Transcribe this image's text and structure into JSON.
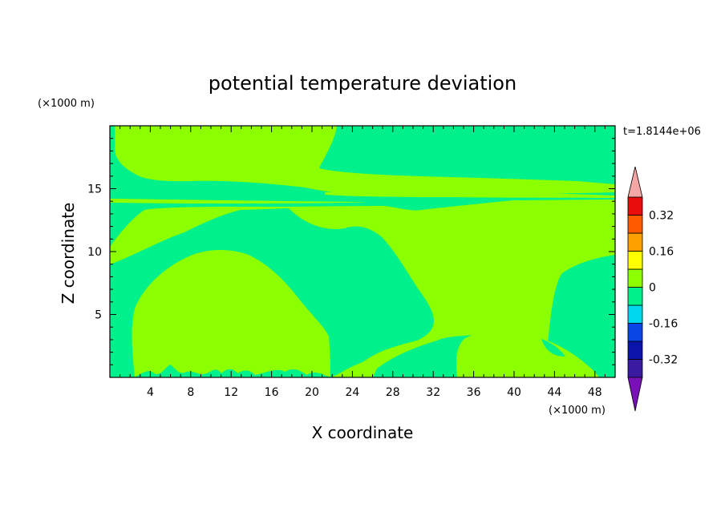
{
  "chart_data": {
    "type": "heatmap",
    "title": "potential temperature deviation",
    "xlabel": "X coordinate",
    "ylabel": "Z coordinate",
    "x_unit": "(×1000 m)",
    "y_unit": "(×1000 m)",
    "time_label": "t=1.8144e+06",
    "xlim": [
      0,
      50
    ],
    "ylim": [
      0,
      20
    ],
    "x_ticks": [
      4,
      8,
      12,
      16,
      20,
      24,
      28,
      32,
      36,
      40,
      44,
      48
    ],
    "y_ticks": [
      5,
      10,
      15
    ],
    "colorbar": {
      "levels": [
        -0.4,
        -0.32,
        -0.24,
        -0.16,
        -0.08,
        0,
        0.08,
        0.16,
        0.24,
        0.32,
        0.4
      ],
      "colors": [
        "#3a1aa0",
        "#0a14a8",
        "#0a46e6",
        "#00d8f0",
        "#00f08c",
        "#8cff00",
        "#ffff00",
        "#ffa000",
        "#ff5a00",
        "#e80e0e"
      ],
      "under_color": "#7a10b8",
      "over_color": "#f4a6a6",
      "labels": [
        "0.32",
        "0.16",
        "0",
        "-0.16",
        "-0.32"
      ],
      "label_values": [
        0.32,
        0.16,
        0,
        -0.16,
        -0.32
      ]
    },
    "regions": [
      {
        "range": "-0.08 to 0",
        "color": "#00f08c",
        "description": "background"
      },
      {
        "range": "0 to 0.08",
        "color": "#8cff00"
      }
    ]
  }
}
